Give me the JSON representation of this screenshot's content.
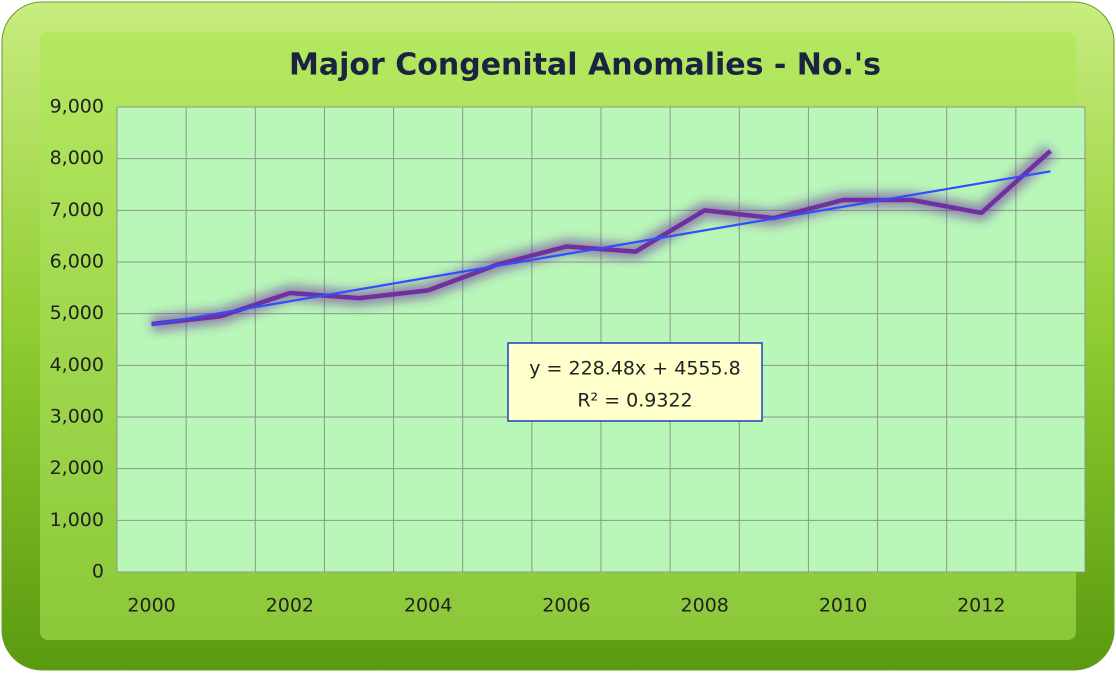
{
  "chart_data": {
    "type": "line",
    "title": "Major Congenital Anomalies - No.'s",
    "categories": [
      "2000",
      null,
      "2002",
      null,
      "2004",
      null,
      "2006",
      null,
      "2008",
      null,
      "2010",
      null,
      "2012",
      null
    ],
    "series": [
      {
        "name": "Major Congenital Anomalies",
        "color": "#7030a0",
        "values": [
          4800,
          4950,
          5400,
          5300,
          5450,
          5950,
          6300,
          6200,
          7000,
          6850,
          7200,
          7200,
          6950,
          8150
        ]
      }
    ],
    "trendline": {
      "slope": 228.48,
      "intercept": 4555.8,
      "color": "#2f4fff",
      "equation": "y = 228.48x + 4555.8",
      "r_squared_label": "R² = 0.9322"
    },
    "ylim": [
      0,
      9000
    ],
    "yticks": [
      0,
      {
        "value": 1000,
        "label": "1,000"
      },
      {
        "value": 2000,
        "label": "2,000"
      },
      {
        "value": 3000,
        "label": "3,000"
      },
      {
        "value": 4000,
        "label": "4,000"
      },
      {
        "value": 5000,
        "label": "5,000"
      },
      {
        "value": 6000,
        "label": "6,000"
      },
      {
        "value": 7000,
        "label": "7,000"
      },
      {
        "value": 8000,
        "label": "8,000"
      },
      {
        "value": 9000,
        "label": "9,000"
      }
    ],
    "grid": true
  }
}
